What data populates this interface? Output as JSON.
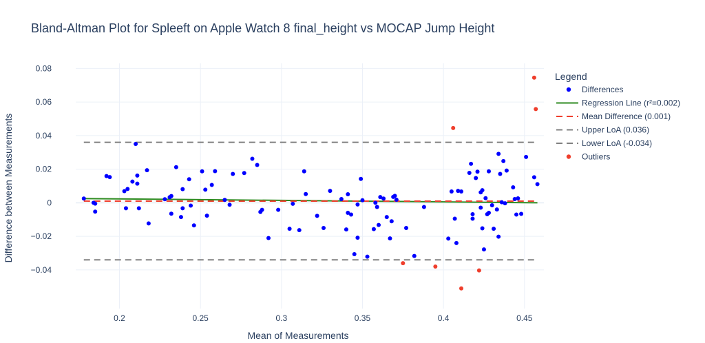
{
  "chart_data": {
    "type": "scatter",
    "title": "Bland-Altman Plot for Spleeft on Apple Watch 8 final_height vs MOCAP  Jump Height",
    "xlabel": "Mean of Measurements",
    "ylabel": "Difference between Measurements",
    "xlim": [
      0.173,
      0.462
    ],
    "ylim": [
      -0.063,
      0.083
    ],
    "xticks": [
      "0.2",
      "0.25",
      "0.3",
      "0.35",
      "0.4",
      "0.45"
    ],
    "yticks": [
      "0.08",
      "0.06",
      "0.04",
      "0.02",
      "0",
      "−0.02",
      "−0.04"
    ],
    "grid": true,
    "legend": {
      "title": "Legend",
      "placement": "right",
      "entries": [
        {
          "label": "Differences",
          "kind": "marker",
          "color": "#0000ff"
        },
        {
          "label": "Regression Line (r²=0.002)",
          "kind": "line",
          "color": "#2e8b20",
          "dash": "solid"
        },
        {
          "label": "Mean Difference (0.001)",
          "kind": "line",
          "color": "#ef3e2c",
          "dash": "dash"
        },
        {
          "label": "Upper LoA (0.036)",
          "kind": "line",
          "color": "#808080",
          "dash": "dash"
        },
        {
          "label": "Lower LoA (-0.034)",
          "kind": "line",
          "color": "#808080",
          "dash": "dash"
        },
        {
          "label": "Outliers",
          "kind": "marker",
          "color": "#ef3e2c"
        }
      ]
    },
    "lines": {
      "mean_difference": 0.001,
      "upper_loa": 0.036,
      "lower_loa": -0.034,
      "regression": {
        "x": [
          0.178,
          0.458
        ],
        "y": [
          0.0025,
          0.0
        ]
      }
    },
    "differences": {
      "color": "#0000ff",
      "points": [
        [
          0.178,
          0.0025
        ],
        [
          0.184,
          0.0
        ],
        [
          0.185,
          -0.0005
        ],
        [
          0.185,
          -0.0053
        ],
        [
          0.192,
          0.0159
        ],
        [
          0.194,
          0.0153
        ],
        [
          0.203,
          0.0069
        ],
        [
          0.204,
          -0.0033
        ],
        [
          0.205,
          0.0082
        ],
        [
          0.208,
          0.0126
        ],
        [
          0.21,
          0.035
        ],
        [
          0.211,
          0.0114
        ],
        [
          0.211,
          0.0162
        ],
        [
          0.212,
          -0.0033
        ],
        [
          0.217,
          0.0194
        ],
        [
          0.218,
          -0.0123
        ],
        [
          0.228,
          0.0021
        ],
        [
          0.231,
          0.0033
        ],
        [
          0.232,
          -0.0065
        ],
        [
          0.232,
          0.004
        ],
        [
          0.235,
          0.0212
        ],
        [
          0.238,
          -0.0085
        ],
        [
          0.239,
          0.0081
        ],
        [
          0.239,
          -0.0033
        ],
        [
          0.243,
          0.014
        ],
        [
          0.244,
          -0.0017
        ],
        [
          0.246,
          -0.0135
        ],
        [
          0.251,
          0.0187
        ],
        [
          0.253,
          0.0078
        ],
        [
          0.254,
          -0.0077
        ],
        [
          0.257,
          0.0106
        ],
        [
          0.259,
          0.0188
        ],
        [
          0.265,
          0.0017
        ],
        [
          0.268,
          -0.0012
        ],
        [
          0.27,
          0.0172
        ],
        [
          0.277,
          0.0177
        ],
        [
          0.282,
          0.0262
        ],
        [
          0.285,
          0.0225
        ],
        [
          0.287,
          -0.0055
        ],
        [
          0.288,
          -0.0042
        ],
        [
          0.292,
          -0.021
        ],
        [
          0.298,
          -0.0042
        ],
        [
          0.305,
          -0.0155
        ],
        [
          0.307,
          -0.0006
        ],
        [
          0.311,
          -0.0163
        ],
        [
          0.314,
          0.0187
        ],
        [
          0.315,
          0.0052
        ],
        [
          0.322,
          -0.0078
        ],
        [
          0.326,
          -0.015
        ],
        [
          0.33,
          0.0071
        ],
        [
          0.337,
          0.0022
        ],
        [
          0.34,
          -0.0159
        ],
        [
          0.341,
          0.0051
        ],
        [
          0.341,
          -0.006
        ],
        [
          0.343,
          -0.007
        ],
        [
          0.345,
          -0.0306
        ],
        [
          0.347,
          -0.0208
        ],
        [
          0.347,
          -0.001
        ],
        [
          0.349,
          0.0142
        ],
        [
          0.35,
          0.0015
        ],
        [
          0.353,
          -0.0321
        ],
        [
          0.357,
          -0.0157
        ],
        [
          0.358,
          0.0
        ],
        [
          0.359,
          -0.0025
        ],
        [
          0.36,
          -0.0132
        ],
        [
          0.361,
          0.0034
        ],
        [
          0.363,
          0.0025
        ],
        [
          0.365,
          -0.0085
        ],
        [
          0.367,
          -0.0212
        ],
        [
          0.368,
          -0.011
        ],
        [
          0.369,
          0.0035
        ],
        [
          0.37,
          0.0041
        ],
        [
          0.371,
          0.0018
        ],
        [
          0.377,
          -0.015
        ],
        [
          0.382,
          -0.0317
        ],
        [
          0.388,
          -0.0025
        ],
        [
          0.403,
          -0.0213
        ],
        [
          0.405,
          0.0067
        ],
        [
          0.407,
          -0.0095
        ],
        [
          0.408,
          -0.024
        ],
        [
          0.409,
          0.0071
        ],
        [
          0.411,
          0.0067
        ],
        [
          0.416,
          0.0178
        ],
        [
          0.417,
          0.0232
        ],
        [
          0.418,
          -0.0068
        ],
        [
          0.418,
          -0.0095
        ],
        [
          0.42,
          0.0147
        ],
        [
          0.421,
          0.0185
        ],
        [
          0.423,
          0.0062
        ],
        [
          0.423,
          -0.0029
        ],
        [
          0.424,
          -0.0152
        ],
        [
          0.424,
          0.0075
        ],
        [
          0.425,
          -0.0278
        ],
        [
          0.426,
          0.0027
        ],
        [
          0.427,
          -0.0068
        ],
        [
          0.428,
          0.0187
        ],
        [
          0.428,
          -0.006
        ],
        [
          0.43,
          -0.0015
        ],
        [
          0.431,
          -0.0155
        ],
        [
          0.433,
          -0.004
        ],
        [
          0.434,
          0.0291
        ],
        [
          0.434,
          -0.0202
        ],
        [
          0.435,
          0.0172
        ],
        [
          0.436,
          0.0003
        ],
        [
          0.437,
          0.0248
        ],
        [
          0.438,
          -0.0003
        ],
        [
          0.439,
          0.0192
        ],
        [
          0.443,
          0.0092
        ],
        [
          0.444,
          0.0022
        ],
        [
          0.445,
          -0.007
        ],
        [
          0.446,
          0.0026
        ],
        [
          0.448,
          -0.0066
        ],
        [
          0.451,
          0.0273
        ],
        [
          0.456,
          0.0152
        ],
        [
          0.458,
          0.0111
        ]
      ]
    },
    "outliers": {
      "color": "#ef3e2c",
      "points": [
        [
          0.375,
          -0.036
        ],
        [
          0.395,
          -0.038
        ],
        [
          0.406,
          0.0445
        ],
        [
          0.411,
          -0.051
        ],
        [
          0.422,
          -0.0403
        ],
        [
          0.456,
          0.0745
        ],
        [
          0.457,
          0.0558
        ]
      ]
    }
  }
}
